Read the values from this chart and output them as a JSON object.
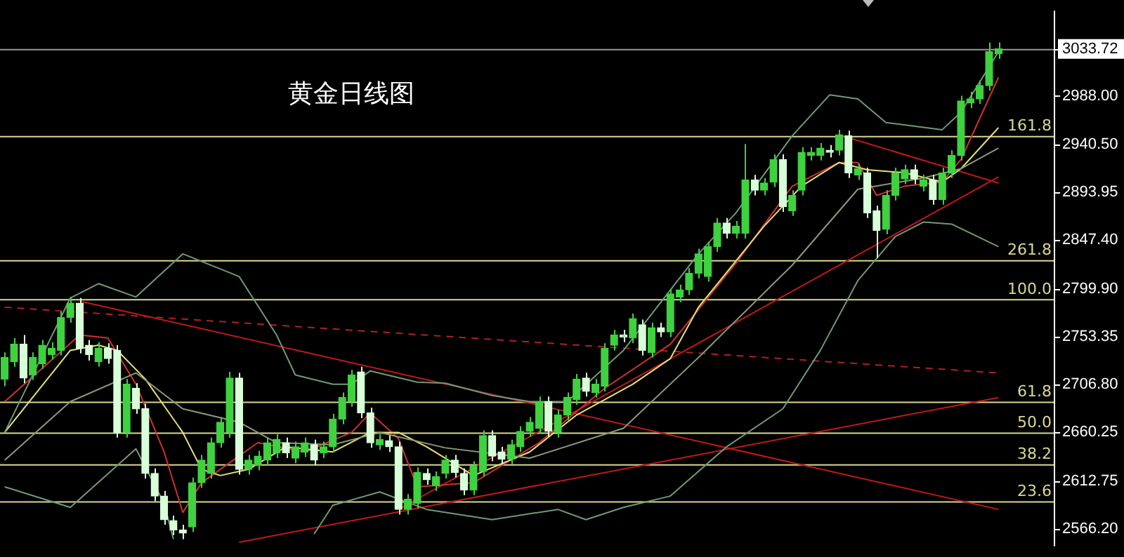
{
  "chart_data": {
    "type": "candlestick",
    "title": "黄金日线图",
    "categories": [
      null,
      null,
      null,
      null,
      null,
      null,
      null,
      null,
      null,
      null,
      null,
      null,
      null,
      null,
      null,
      null,
      null,
      null,
      null,
      null,
      null,
      null,
      null,
      null,
      null,
      null,
      null,
      null,
      null,
      null,
      null,
      null,
      null,
      null,
      null,
      null,
      null,
      null,
      null,
      null,
      null,
      null,
      null,
      null,
      null,
      null,
      null,
      null,
      null,
      null,
      null,
      null,
      null,
      null,
      null,
      null,
      null,
      null,
      null,
      null,
      null,
      null,
      null,
      null,
      null,
      null,
      null,
      null,
      null,
      null,
      null,
      null,
      null,
      null,
      null,
      null,
      null,
      null,
      null,
      null,
      null,
      null,
      null,
      null,
      null,
      null,
      null,
      null,
      null,
      null,
      null,
      null,
      null,
      null,
      null,
      null,
      null,
      null,
      null,
      null,
      null,
      null,
      null,
      null,
      null,
      null,
      null
    ],
    "ohlc": [
      [
        2712,
        2738,
        2705,
        2733
      ],
      [
        2729,
        2752,
        2724,
        2746
      ],
      [
        2746,
        2755,
        2708,
        2713
      ],
      [
        2716,
        2738,
        2711,
        2733
      ],
      [
        2727,
        2750,
        2722,
        2745
      ],
      [
        2736,
        2748,
        2731,
        2742
      ],
      [
        2740,
        2778,
        2735,
        2772
      ],
      [
        2772,
        2792,
        2767,
        2786
      ],
      [
        2786,
        2791,
        2737,
        2742
      ],
      [
        2745,
        2750,
        2730,
        2736
      ],
      [
        2729,
        2748,
        2724,
        2742
      ],
      [
        2742,
        2747,
        2727,
        2732
      ],
      [
        2740,
        2745,
        2655,
        2660
      ],
      [
        2660,
        2712,
        2655,
        2707
      ],
      [
        2703,
        2708,
        2678,
        2683
      ],
      [
        2683,
        2688,
        2615,
        2620
      ],
      [
        2620,
        2625,
        2593,
        2598
      ],
      [
        2598,
        2603,
        2570,
        2575
      ],
      [
        2574,
        2579,
        2560,
        2565
      ],
      [
        2565,
        2570,
        2556,
        2562
      ],
      [
        2568,
        2616,
        2563,
        2611
      ],
      [
        2611,
        2638,
        2606,
        2633
      ],
      [
        2620,
        2655,
        2615,
        2650
      ],
      [
        2650,
        2675,
        2645,
        2670
      ],
      [
        2660,
        2719,
        2655,
        2713
      ],
      [
        2713,
        2718,
        2619,
        2624
      ],
      [
        2624,
        2638,
        2619,
        2633
      ],
      [
        2628,
        2642,
        2623,
        2637
      ],
      [
        2633,
        2655,
        2628,
        2650
      ],
      [
        2640,
        2658,
        2635,
        2653
      ],
      [
        2650,
        2655,
        2635,
        2640
      ],
      [
        2635,
        2651,
        2630,
        2646
      ],
      [
        2641,
        2655,
        2636,
        2650
      ],
      [
        2648,
        2653,
        2628,
        2633
      ],
      [
        2640,
        2651,
        2635,
        2646
      ],
      [
        2646,
        2678,
        2641,
        2673
      ],
      [
        2673,
        2699,
        2668,
        2694
      ],
      [
        2690,
        2721,
        2685,
        2716
      ],
      [
        2719,
        2724,
        2674,
        2679
      ],
      [
        2679,
        2684,
        2645,
        2650
      ],
      [
        2648,
        2658,
        2643,
        2653
      ],
      [
        2652,
        2657,
        2641,
        2646
      ],
      [
        2646,
        2651,
        2580,
        2585
      ],
      [
        2585,
        2600,
        2580,
        2595
      ],
      [
        2591,
        2626,
        2586,
        2621
      ],
      [
        2620,
        2625,
        2609,
        2614
      ],
      [
        2608,
        2622,
        2603,
        2617
      ],
      [
        2620,
        2638,
        2615,
        2633
      ],
      [
        2633,
        2638,
        2616,
        2621
      ],
      [
        2620,
        2625,
        2599,
        2604
      ],
      [
        2604,
        2632,
        2599,
        2627
      ],
      [
        2622,
        2662,
        2617,
        2657
      ],
      [
        2657,
        2662,
        2632,
        2637
      ],
      [
        2641,
        2646,
        2629,
        2634
      ],
      [
        2634,
        2653,
        2629,
        2648
      ],
      [
        2646,
        2666,
        2641,
        2661
      ],
      [
        2661,
        2675,
        2656,
        2670
      ],
      [
        2664,
        2695,
        2659,
        2690
      ],
      [
        2690,
        2695,
        2656,
        2661
      ],
      [
        2660,
        2682,
        2655,
        2677
      ],
      [
        2677,
        2699,
        2672,
        2694
      ],
      [
        2692,
        2717,
        2687,
        2712
      ],
      [
        2713,
        2718,
        2695,
        2700
      ],
      [
        2699,
        2712,
        2694,
        2707
      ],
      [
        2705,
        2747,
        2700,
        2742
      ],
      [
        2745,
        2760,
        2740,
        2755
      ],
      [
        2755,
        2760,
        2748,
        2753
      ],
      [
        2752,
        2776,
        2747,
        2771
      ],
      [
        2765,
        2770,
        2735,
        2740
      ],
      [
        2738,
        2767,
        2733,
        2762
      ],
      [
        2762,
        2767,
        2753,
        2758
      ],
      [
        2758,
        2800,
        2753,
        2795
      ],
      [
        2792,
        2804,
        2787,
        2799
      ],
      [
        2799,
        2820,
        2794,
        2815
      ],
      [
        2815,
        2839,
        2810,
        2834
      ],
      [
        2812,
        2846,
        2807,
        2841
      ],
      [
        2841,
        2869,
        2836,
        2864
      ],
      [
        2864,
        2869,
        2849,
        2854
      ],
      [
        2854,
        2866,
        2849,
        2861
      ],
      [
        2854,
        2941,
        2849,
        2906
      ],
      [
        2906,
        2911,
        2891,
        2896
      ],
      [
        2896,
        2908,
        2891,
        2903
      ],
      [
        2904,
        2931,
        2899,
        2926
      ],
      [
        2926,
        2931,
        2875,
        2880
      ],
      [
        2876,
        2896,
        2871,
        2891
      ],
      [
        2896,
        2938,
        2891,
        2933
      ],
      [
        2930,
        2938,
        2925,
        2933
      ],
      [
        2930,
        2942,
        2925,
        2937
      ],
      [
        2935,
        2940,
        2928,
        2933
      ],
      [
        2935,
        2955,
        2930,
        2950
      ],
      [
        2949,
        2954,
        2908,
        2913
      ],
      [
        2911,
        2922,
        2906,
        2917
      ],
      [
        2913,
        2918,
        2869,
        2874
      ],
      [
        2876,
        2881,
        2830,
        2857
      ],
      [
        2858,
        2896,
        2853,
        2891
      ],
      [
        2891,
        2918,
        2886,
        2913
      ],
      [
        2907,
        2921,
        2902,
        2916
      ],
      [
        2916,
        2921,
        2902,
        2907
      ],
      [
        2900,
        2911,
        2895,
        2906
      ],
      [
        2906,
        2911,
        2882,
        2887
      ],
      [
        2887,
        2918,
        2882,
        2913
      ],
      [
        2913,
        2935,
        2908,
        2930
      ],
      [
        2930,
        2988,
        2925,
        2983
      ],
      [
        2981,
        2992,
        2976,
        2985
      ],
      [
        2985,
        3003,
        2980,
        2998
      ],
      [
        2998,
        3040,
        2993,
        3031
      ],
      [
        3029,
        3040,
        3024,
        3033.72
      ]
    ],
    "colors": [
      "#3fd13f",
      "#3fd13f",
      "#d8ffd8",
      "#3fd13f",
      "#3fd13f",
      "#3fd13f",
      "#3fd13f",
      "#3fd13f",
      "#d8ffd8",
      "#d8ffd8",
      "#3fd13f",
      "#d8ffd8",
      "#d8ffd8",
      "#3fd13f",
      "#d8ffd8",
      "#d8ffd8",
      "#d8ffd8",
      "#d8ffd8",
      "#d8ffd8",
      "#d8ffd8",
      "#3fd13f",
      "#3fd13f",
      "#3fd13f",
      "#3fd13f",
      "#3fd13f",
      "#d8ffd8",
      "#3fd13f",
      "#3fd13f",
      "#3fd13f",
      "#3fd13f",
      "#d8ffd8",
      "#3fd13f",
      "#3fd13f",
      "#d8ffd8",
      "#3fd13f",
      "#3fd13f",
      "#3fd13f",
      "#3fd13f",
      "#d8ffd8",
      "#d8ffd8",
      "#3fd13f",
      "#d8ffd8",
      "#d8ffd8",
      "#3fd13f",
      "#3fd13f",
      "#d8ffd8",
      "#3fd13f",
      "#3fd13f",
      "#d8ffd8",
      "#d8ffd8",
      "#3fd13f",
      "#3fd13f",
      "#d8ffd8",
      "#d8ffd8",
      "#3fd13f",
      "#3fd13f",
      "#3fd13f",
      "#3fd13f",
      "#d8ffd8",
      "#3fd13f",
      "#3fd13f",
      "#3fd13f",
      "#d8ffd8",
      "#3fd13f",
      "#3fd13f",
      "#3fd13f",
      "#d8ffd8",
      "#3fd13f",
      "#d8ffd8",
      "#3fd13f",
      "#d8ffd8",
      "#3fd13f",
      "#3fd13f",
      "#3fd13f",
      "#3fd13f",
      "#3fd13f",
      "#3fd13f",
      "#d8ffd8",
      "#3fd13f",
      "#3fd13f",
      "#d8ffd8",
      "#3fd13f",
      "#3fd13f",
      "#d8ffd8",
      "#3fd13f",
      "#3fd13f",
      "#3fd13f",
      "#3fd13f",
      "#d8ffd8",
      "#3fd13f",
      "#d8ffd8",
      "#3fd13f",
      "#d8ffd8",
      "#d8ffd8",
      "#3fd13f",
      "#3fd13f",
      "#3fd13f",
      "#d8ffd8",
      "#3fd13f",
      "#d8ffd8",
      "#3fd13f",
      "#3fd13f",
      "#3fd13f",
      "#3fd13f",
      "#3fd13f",
      "#3fd13f",
      "#3fd13f"
    ],
    "ylim": [
      2549,
      3071
    ],
    "yticks": [
      {
        "value": 3033.72,
        "label": "3033.72"
      },
      {
        "value": 2988,
        "label": "2988.00"
      },
      {
        "value": 2940.5,
        "label": "2940.50"
      },
      {
        "value": 2893.95,
        "label": "2893.95"
      },
      {
        "value": 2847.4,
        "label": "2847.40"
      },
      {
        "value": 2799.9,
        "label": "2799.90"
      },
      {
        "value": 2753.35,
        "label": "2753.35"
      },
      {
        "value": 2706.8,
        "label": "2706.80"
      },
      {
        "value": 2660.25,
        "label": "2660.25"
      },
      {
        "value": 2612.75,
        "label": "2612.75"
      },
      {
        "value": 2566.2,
        "label": "2566.20"
      }
    ],
    "tick_labels": "y",
    "grid": false,
    "legend": false,
    "marker": "none",
    "ref_lines": [
      {
        "axis": "y",
        "value": 3033.72,
        "color": "#9a9a9a"
      },
      {
        "axis": "y",
        "value": 2949,
        "color": "#d8d890"
      },
      {
        "axis": "y",
        "value": 2828,
        "color": "#d8d890"
      },
      {
        "axis": "y",
        "value": 2790,
        "color": "#d8d890"
      },
      {
        "axis": "y",
        "value": 2690,
        "color": "#d8d890"
      },
      {
        "axis": "y",
        "value": 2660,
        "color": "#d8d890"
      },
      {
        "axis": "y",
        "value": 2629,
        "color": "#d8d890"
      },
      {
        "axis": "y",
        "value": 2593,
        "color": "#d8d890"
      }
    ],
    "annotations": [
      {
        "text": "161.8",
        "y": 2949
      },
      {
        "text": "261.8",
        "y": 2828
      },
      {
        "text": "100.0",
        "y": 2790
      },
      {
        "text": "61.8",
        "y": 2690
      },
      {
        "text": "50.0",
        "y": 2660
      },
      {
        "text": "38.2",
        "y": 2629
      },
      {
        "text": "23.6",
        "y": 2593
      }
    ],
    "series": [
      {
        "type": "line",
        "color": "#6e9a78",
        "values": [
          2660,
          null,
          null,
          null,
          null,
          null,
          null,
          2791,
          null,
          null,
          2805,
          null,
          null,
          null,
          2792,
          null,
          null,
          null,
          null,
          2834,
          null,
          null,
          null,
          null,
          null,
          2812,
          null,
          null,
          null,
          2755,
          null,
          2716,
          null,
          null,
          null,
          2707,
          null,
          2707,
          null,
          2720,
          null,
          null,
          null,
          null,
          2709,
          null,
          null,
          2708,
          null,
          null,
          null,
          null,
          2696,
          null,
          null,
          null,
          2690,
          null,
          null,
          null,
          2690,
          null,
          null,
          null,
          null,
          null,
          2740,
          null,
          null,
          null,
          null,
          null,
          null,
          null,
          2834,
          null,
          null,
          null,
          2874,
          null,
          null,
          null,
          null,
          null,
          2949,
          null,
          null,
          null,
          2989,
          null,
          null,
          2985,
          null,
          null,
          2962,
          null,
          null,
          null,
          null,
          null,
          2955,
          null,
          2972,
          null,
          null,
          null,
          3031
        ]
      },
      {
        "type": "line",
        "color": "#8a9a78",
        "values": [
          2633,
          null,
          null,
          null,
          null,
          null,
          null,
          2690,
          null,
          null,
          null,
          null,
          null,
          null,
          2718,
          null,
          null,
          null,
          null,
          2683,
          null,
          null,
          null,
          null,
          null,
          2670,
          null,
          null,
          null,
          2650,
          null,
          null,
          null,
          null,
          null,
          2648,
          null,
          null,
          null,
          null,
          2660,
          null,
          null,
          null,
          null,
          null,
          null,
          2645,
          null,
          null,
          null,
          null,
          null,
          null,
          null,
          null,
          2635,
          null,
          null,
          null,
          null,
          null,
          null,
          null,
          null,
          null,
          2664,
          null,
          null,
          null,
          null,
          null,
          null,
          null,
          2733,
          null,
          null,
          null,
          null,
          null,
          null,
          null,
          null,
          null,
          2823,
          null,
          null,
          null,
          null,
          null,
          null,
          2897,
          null,
          null,
          null,
          null,
          null,
          null,
          2908,
          null,
          null,
          null,
          2917,
          null,
          null,
          null,
          2937
        ]
      },
      {
        "type": "line",
        "color": "#6e9a78",
        "values": [
          2607,
          null,
          null,
          null,
          null,
          null,
          null,
          2587,
          null,
          null,
          null,
          null,
          null,
          null,
          2644,
          null,
          null,
          2591,
          2556,
          null,
          null,
          null,
          null,
          null,
          null,
          null,
          null,
          null,
          null,
          null,
          null,
          null,
          null,
          null,
          null,
          null,
          null,
          null,
          null,
          null,
          null,
          null,
          null,
          null,
          null,
          null,
          null,
          null,
          null,
          null,
          null,
          null,
          null,
          null,
          null,
          null,
          null,
          null,
          null,
          null,
          null,
          null,
          null,
          null,
          null,
          null,
          null,
          null,
          null,
          null,
          null,
          null,
          null,
          null,
          null,
          null,
          null,
          null,
          null,
          null,
          null,
          null,
          null,
          null,
          null,
          null,
          null,
          null,
          null,
          null,
          null,
          null,
          null,
          null,
          null,
          null,
          null,
          null,
          null,
          null,
          null,
          null,
          null,
          null,
          null,
          null,
          null
        ]
      },
      {
        "type": "line",
        "color": "#6e9a78",
        "values": [
          null,
          null,
          null,
          null,
          null,
          null,
          null,
          null,
          null,
          null,
          null,
          null,
          null,
          null,
          null,
          null,
          null,
          null,
          null,
          null,
          null,
          null,
          null,
          null,
          null,
          null,
          null,
          null,
          null,
          null,
          null,
          null,
          null,
          2561,
          null,
          2589,
          null,
          null,
          null,
          null,
          2602,
          null,
          null,
          null,
          null,
          2585,
          null,
          null,
          null,
          null,
          null,
          null,
          2575,
          null,
          null,
          null,
          null,
          null,
          null,
          2585,
          null,
          null,
          2575,
          null,
          null,
          null,
          2587,
          null,
          null,
          null,
          null,
          2598,
          null,
          null,
          null,
          null,
          null,
          2646,
          null,
          null,
          null,
          null,
          null,
          2683,
          null,
          null,
          null,
          2740,
          null,
          null,
          null,
          2808,
          null,
          null,
          null,
          2851,
          null,
          null,
          2865,
          null,
          null,
          2863,
          null,
          null,
          null,
          null,
          2841
        ]
      },
      {
        "type": "line",
        "color": "#e6e07a",
        "values": [
          2660,
          null,
          null,
          null,
          null,
          null,
          null,
          2740,
          null,
          null,
          2745,
          null,
          2740,
          null,
          null,
          2712,
          null,
          null,
          null,
          2660,
          null,
          2624,
          null,
          2618,
          null,
          null,
          2624,
          null,
          null,
          null,
          2646,
          null,
          null,
          null,
          null,
          2641,
          null,
          null,
          null,
          2660,
          null,
          null,
          2660,
          null,
          null,
          2646,
          null,
          null,
          null,
          null,
          2618,
          null,
          null,
          null,
          null,
          null,
          2641,
          null,
          null,
          null,
          null,
          2677,
          null,
          null,
          null,
          null,
          null,
          2707,
          null,
          null,
          null,
          2732,
          null,
          null,
          2782,
          null,
          null,
          null,
          null,
          null,
          null,
          2861,
          null,
          null,
          null,
          2900,
          null,
          null,
          null,
          2923,
          null,
          null,
          2916,
          null,
          null,
          null,
          2913,
          null,
          null,
          null,
          2904,
          null,
          2917,
          null,
          null,
          null,
          2957
        ]
      },
      {
        "type": "line",
        "color": "#d03030",
        "values": [
          2690,
          null,
          null,
          null,
          null,
          null,
          null,
          null,
          2755,
          null,
          null,
          2752,
          null,
          null,
          2707,
          null,
          null,
          2641,
          null,
          2582,
          null,
          2611,
          null,
          null,
          null,
          null,
          null,
          2650,
          null,
          null,
          null,
          null,
          2641,
          null,
          null,
          null,
          null,
          2660,
          null,
          2679,
          null,
          null,
          2654,
          null,
          2607,
          null,
          null,
          null,
          null,
          null,
          2611,
          null,
          null,
          null,
          null,
          null,
          null,
          2650,
          null,
          null,
          null,
          null,
          null,
          null,
          2703,
          null,
          null,
          null,
          null,
          null,
          null,
          2746,
          null,
          null,
          null,
          null,
          null,
          null,
          2825,
          null,
          null,
          null,
          null,
          null,
          2900,
          null,
          null,
          null,
          null,
          2923,
          null,
          2923,
          null,
          2891,
          null,
          null,
          2900,
          null,
          null,
          null,
          2904,
          null,
          2926,
          null,
          null,
          null,
          3006
        ]
      },
      {
        "type": "line",
        "color": "#c01818",
        "values": [
          null,
          null,
          null,
          null,
          null,
          null,
          null,
          null,
          2788,
          null,
          null,
          null,
          null,
          null,
          null,
          null,
          null,
          null,
          null,
          null,
          null,
          null,
          null,
          null,
          null,
          null,
          null,
          null,
          null,
          null,
          null,
          null,
          null,
          null,
          null,
          null,
          null,
          null,
          null,
          null,
          null,
          null,
          null,
          null,
          null,
          null,
          null,
          null,
          null,
          null,
          null,
          null,
          null,
          null,
          null,
          null,
          null,
          null,
          null,
          null,
          null,
          null,
          null,
          null,
          null,
          null,
          null,
          null,
          null,
          null,
          null,
          null,
          null,
          null,
          null,
          null,
          null,
          null,
          null,
          null,
          null,
          null,
          null,
          null,
          null,
          null,
          null,
          null,
          null,
          null,
          null,
          null,
          null,
          null,
          null,
          null,
          null,
          null,
          null,
          null,
          null,
          null,
          null,
          null,
          null,
          null,
          2585
        ]
      },
      {
        "type": "line",
        "color": "#c01818",
        "values": [
          null,
          null,
          null,
          null,
          null,
          null,
          null,
          null,
          null,
          null,
          null,
          null,
          null,
          null,
          null,
          null,
          null,
          null,
          null,
          null,
          null,
          null,
          null,
          null,
          null,
          2553,
          null,
          null,
          null,
          null,
          null,
          null,
          null,
          null,
          null,
          null,
          null,
          null,
          null,
          null,
          null,
          null,
          null,
          null,
          null,
          null,
          null,
          null,
          null,
          null,
          null,
          null,
          null,
          null,
          null,
          null,
          null,
          null,
          null,
          null,
          null,
          null,
          null,
          null,
          null,
          null,
          null,
          null,
          null,
          null,
          null,
          null,
          null,
          null,
          null,
          null,
          null,
          null,
          null,
          null,
          null,
          null,
          null,
          null,
          null,
          null,
          null,
          null,
          null,
          null,
          null,
          null,
          null,
          null,
          null,
          null,
          null,
          null,
          null,
          null,
          null,
          null,
          null,
          null,
          null,
          null,
          2694
        ]
      },
      {
        "type": "line",
        "color": "#c01818",
        "values": [
          null,
          null,
          null,
          null,
          null,
          null,
          null,
          null,
          null,
          null,
          null,
          null,
          null,
          null,
          null,
          null,
          null,
          null,
          null,
          null,
          null,
          null,
          null,
          null,
          null,
          null,
          null,
          null,
          null,
          null,
          null,
          null,
          null,
          null,
          null,
          null,
          null,
          null,
          null,
          null,
          null,
          null,
          2585,
          null,
          null,
          null,
          null,
          null,
          null,
          null,
          null,
          null,
          null,
          null,
          null,
          null,
          null,
          null,
          null,
          null,
          null,
          null,
          null,
          null,
          null,
          null,
          null,
          null,
          null,
          null,
          null,
          null,
          null,
          null,
          null,
          null,
          null,
          null,
          null,
          null,
          null,
          null,
          null,
          null,
          null,
          null,
          null,
          null,
          null,
          null,
          null,
          null,
          null,
          null,
          null,
          null,
          null,
          null,
          null,
          null,
          null,
          null,
          null,
          null,
          null,
          null,
          2909
        ]
      },
      {
        "type": "line",
        "color": "#c01818",
        "values": [
          null,
          null,
          null,
          null,
          null,
          null,
          null,
          null,
          null,
          null,
          null,
          null,
          null,
          null,
          null,
          null,
          null,
          null,
          null,
          null,
          null,
          null,
          null,
          null,
          null,
          null,
          null,
          null,
          null,
          null,
          null,
          null,
          null,
          null,
          null,
          null,
          null,
          null,
          null,
          null,
          null,
          null,
          null,
          null,
          null,
          null,
          null,
          null,
          null,
          null,
          null,
          null,
          null,
          null,
          null,
          null,
          null,
          null,
          null,
          null,
          null,
          null,
          null,
          null,
          null,
          null,
          null,
          null,
          null,
          null,
          null,
          null,
          null,
          null,
          null,
          null,
          null,
          null,
          null,
          null,
          null,
          null,
          null,
          null,
          null,
          null,
          null,
          null,
          null,
          2950,
          null,
          null,
          null,
          null,
          null,
          null,
          null,
          null,
          null,
          null,
          null,
          null,
          null,
          null,
          null,
          null,
          2903
        ]
      },
      {
        "type": "line",
        "color": "#b02020",
        "line_style": "dashed",
        "values": [
          2782,
          null,
          null,
          null,
          null,
          null,
          null,
          null,
          null,
          null,
          null,
          null,
          null,
          null,
          null,
          null,
          null,
          null,
          null,
          null,
          null,
          null,
          null,
          null,
          null,
          null,
          null,
          null,
          null,
          null,
          null,
          null,
          null,
          null,
          null,
          null,
          null,
          null,
          null,
          null,
          null,
          null,
          null,
          null,
          null,
          null,
          null,
          null,
          null,
          null,
          null,
          null,
          null,
          null,
          null,
          null,
          null,
          null,
          null,
          null,
          null,
          null,
          null,
          null,
          null,
          null,
          null,
          null,
          null,
          null,
          null,
          null,
          null,
          null,
          null,
          null,
          null,
          null,
          null,
          null,
          null,
          null,
          null,
          null,
          null,
          null,
          null,
          null,
          null,
          null,
          null,
          null,
          null,
          null,
          null,
          null,
          null,
          null,
          null,
          null,
          null,
          null,
          null,
          null,
          null,
          null,
          2718
        ]
      }
    ]
  }
}
